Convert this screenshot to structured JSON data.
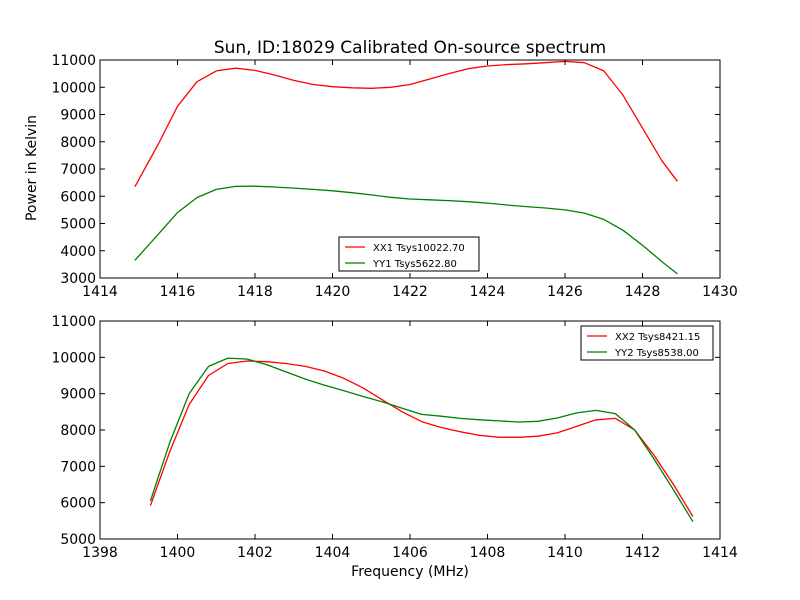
{
  "title": "Sun, ID:18029 Calibrated On-source spectrum",
  "ylabel": "Power in Kelvin",
  "xlabel": "Frequency (MHz)",
  "chart_data": [
    {
      "type": "line",
      "xlim": [
        1414,
        1430
      ],
      "ylim": [
        3000,
        11000
      ],
      "xticks": [
        1414,
        1416,
        1418,
        1420,
        1422,
        1424,
        1426,
        1428,
        1430
      ],
      "yticks": [
        3000,
        4000,
        5000,
        6000,
        7000,
        8000,
        9000,
        10000,
        11000
      ],
      "legend_position": "lower-center",
      "series": [
        {
          "name": "XX1 Tsys10022.70",
          "color": "#ff0000",
          "x": [
            1414.9,
            1415.5,
            1416.0,
            1416.5,
            1417.0,
            1417.5,
            1418.0,
            1418.5,
            1419.0,
            1419.5,
            1420.0,
            1420.5,
            1421.0,
            1421.5,
            1422.0,
            1422.5,
            1423.0,
            1423.5,
            1424.0,
            1424.5,
            1425.0,
            1425.5,
            1426.0,
            1426.5,
            1427.0,
            1427.5,
            1428.0,
            1428.5,
            1428.9
          ],
          "y": [
            6350,
            7900,
            9300,
            10200,
            10600,
            10700,
            10620,
            10450,
            10250,
            10100,
            10020,
            9980,
            9960,
            10000,
            10100,
            10300,
            10500,
            10680,
            10780,
            10830,
            10860,
            10900,
            10950,
            10900,
            10600,
            9700,
            8500,
            7300,
            6550
          ]
        },
        {
          "name": "YY1 Tsys5622.80",
          "color": "#008000",
          "x": [
            1414.9,
            1415.5,
            1416.0,
            1416.5,
            1417.0,
            1417.5,
            1418.0,
            1418.5,
            1419.0,
            1419.5,
            1420.0,
            1420.5,
            1421.0,
            1421.5,
            1422.0,
            1422.5,
            1423.0,
            1423.5,
            1424.0,
            1424.5,
            1425.0,
            1425.5,
            1426.0,
            1426.5,
            1427.0,
            1427.5,
            1428.0,
            1428.5,
            1428.9
          ],
          "y": [
            3650,
            4600,
            5400,
            5950,
            6250,
            6360,
            6370,
            6340,
            6300,
            6250,
            6200,
            6130,
            6050,
            5960,
            5900,
            5870,
            5840,
            5800,
            5750,
            5680,
            5620,
            5570,
            5500,
            5380,
            5150,
            4750,
            4200,
            3600,
            3150
          ]
        }
      ]
    },
    {
      "type": "line",
      "xlim": [
        1398,
        1414
      ],
      "ylim": [
        5000,
        11000
      ],
      "xticks": [
        1398,
        1400,
        1402,
        1404,
        1406,
        1408,
        1410,
        1412,
        1414
      ],
      "yticks": [
        5000,
        6000,
        7000,
        8000,
        9000,
        10000,
        11000
      ],
      "legend_position": "upper-right",
      "series": [
        {
          "name": "XX2 Tsys8421.15",
          "color": "#ff0000",
          "x": [
            1399.3,
            1399.8,
            1400.3,
            1400.8,
            1401.3,
            1401.8,
            1402.3,
            1402.8,
            1403.3,
            1403.8,
            1404.3,
            1404.8,
            1405.3,
            1405.8,
            1406.3,
            1406.8,
            1407.3,
            1407.8,
            1408.3,
            1408.8,
            1409.3,
            1409.8,
            1410.3,
            1410.8,
            1411.3,
            1411.8,
            1412.3,
            1412.8,
            1413.3
          ],
          "y": [
            5920,
            7400,
            8700,
            9500,
            9830,
            9900,
            9880,
            9830,
            9750,
            9620,
            9420,
            9150,
            8820,
            8500,
            8230,
            8070,
            7950,
            7850,
            7800,
            7800,
            7830,
            7920,
            8100,
            8280,
            8320,
            8000,
            7300,
            6500,
            5620
          ]
        },
        {
          "name": "YY2 Tsys8538.00",
          "color": "#008000",
          "x": [
            1399.3,
            1399.8,
            1400.3,
            1400.8,
            1401.3,
            1401.8,
            1402.3,
            1402.8,
            1403.3,
            1403.8,
            1404.3,
            1404.8,
            1405.3,
            1405.8,
            1406.3,
            1406.8,
            1407.3,
            1407.8,
            1408.3,
            1408.8,
            1409.3,
            1409.8,
            1410.3,
            1410.8,
            1411.3,
            1411.8,
            1412.3,
            1412.8,
            1413.3
          ],
          "y": [
            6050,
            7650,
            9000,
            9750,
            9980,
            9950,
            9800,
            9600,
            9400,
            9230,
            9080,
            8920,
            8770,
            8600,
            8430,
            8380,
            8320,
            8280,
            8250,
            8220,
            8240,
            8330,
            8470,
            8540,
            8450,
            8000,
            7200,
            6350,
            5480
          ]
        }
      ]
    }
  ]
}
